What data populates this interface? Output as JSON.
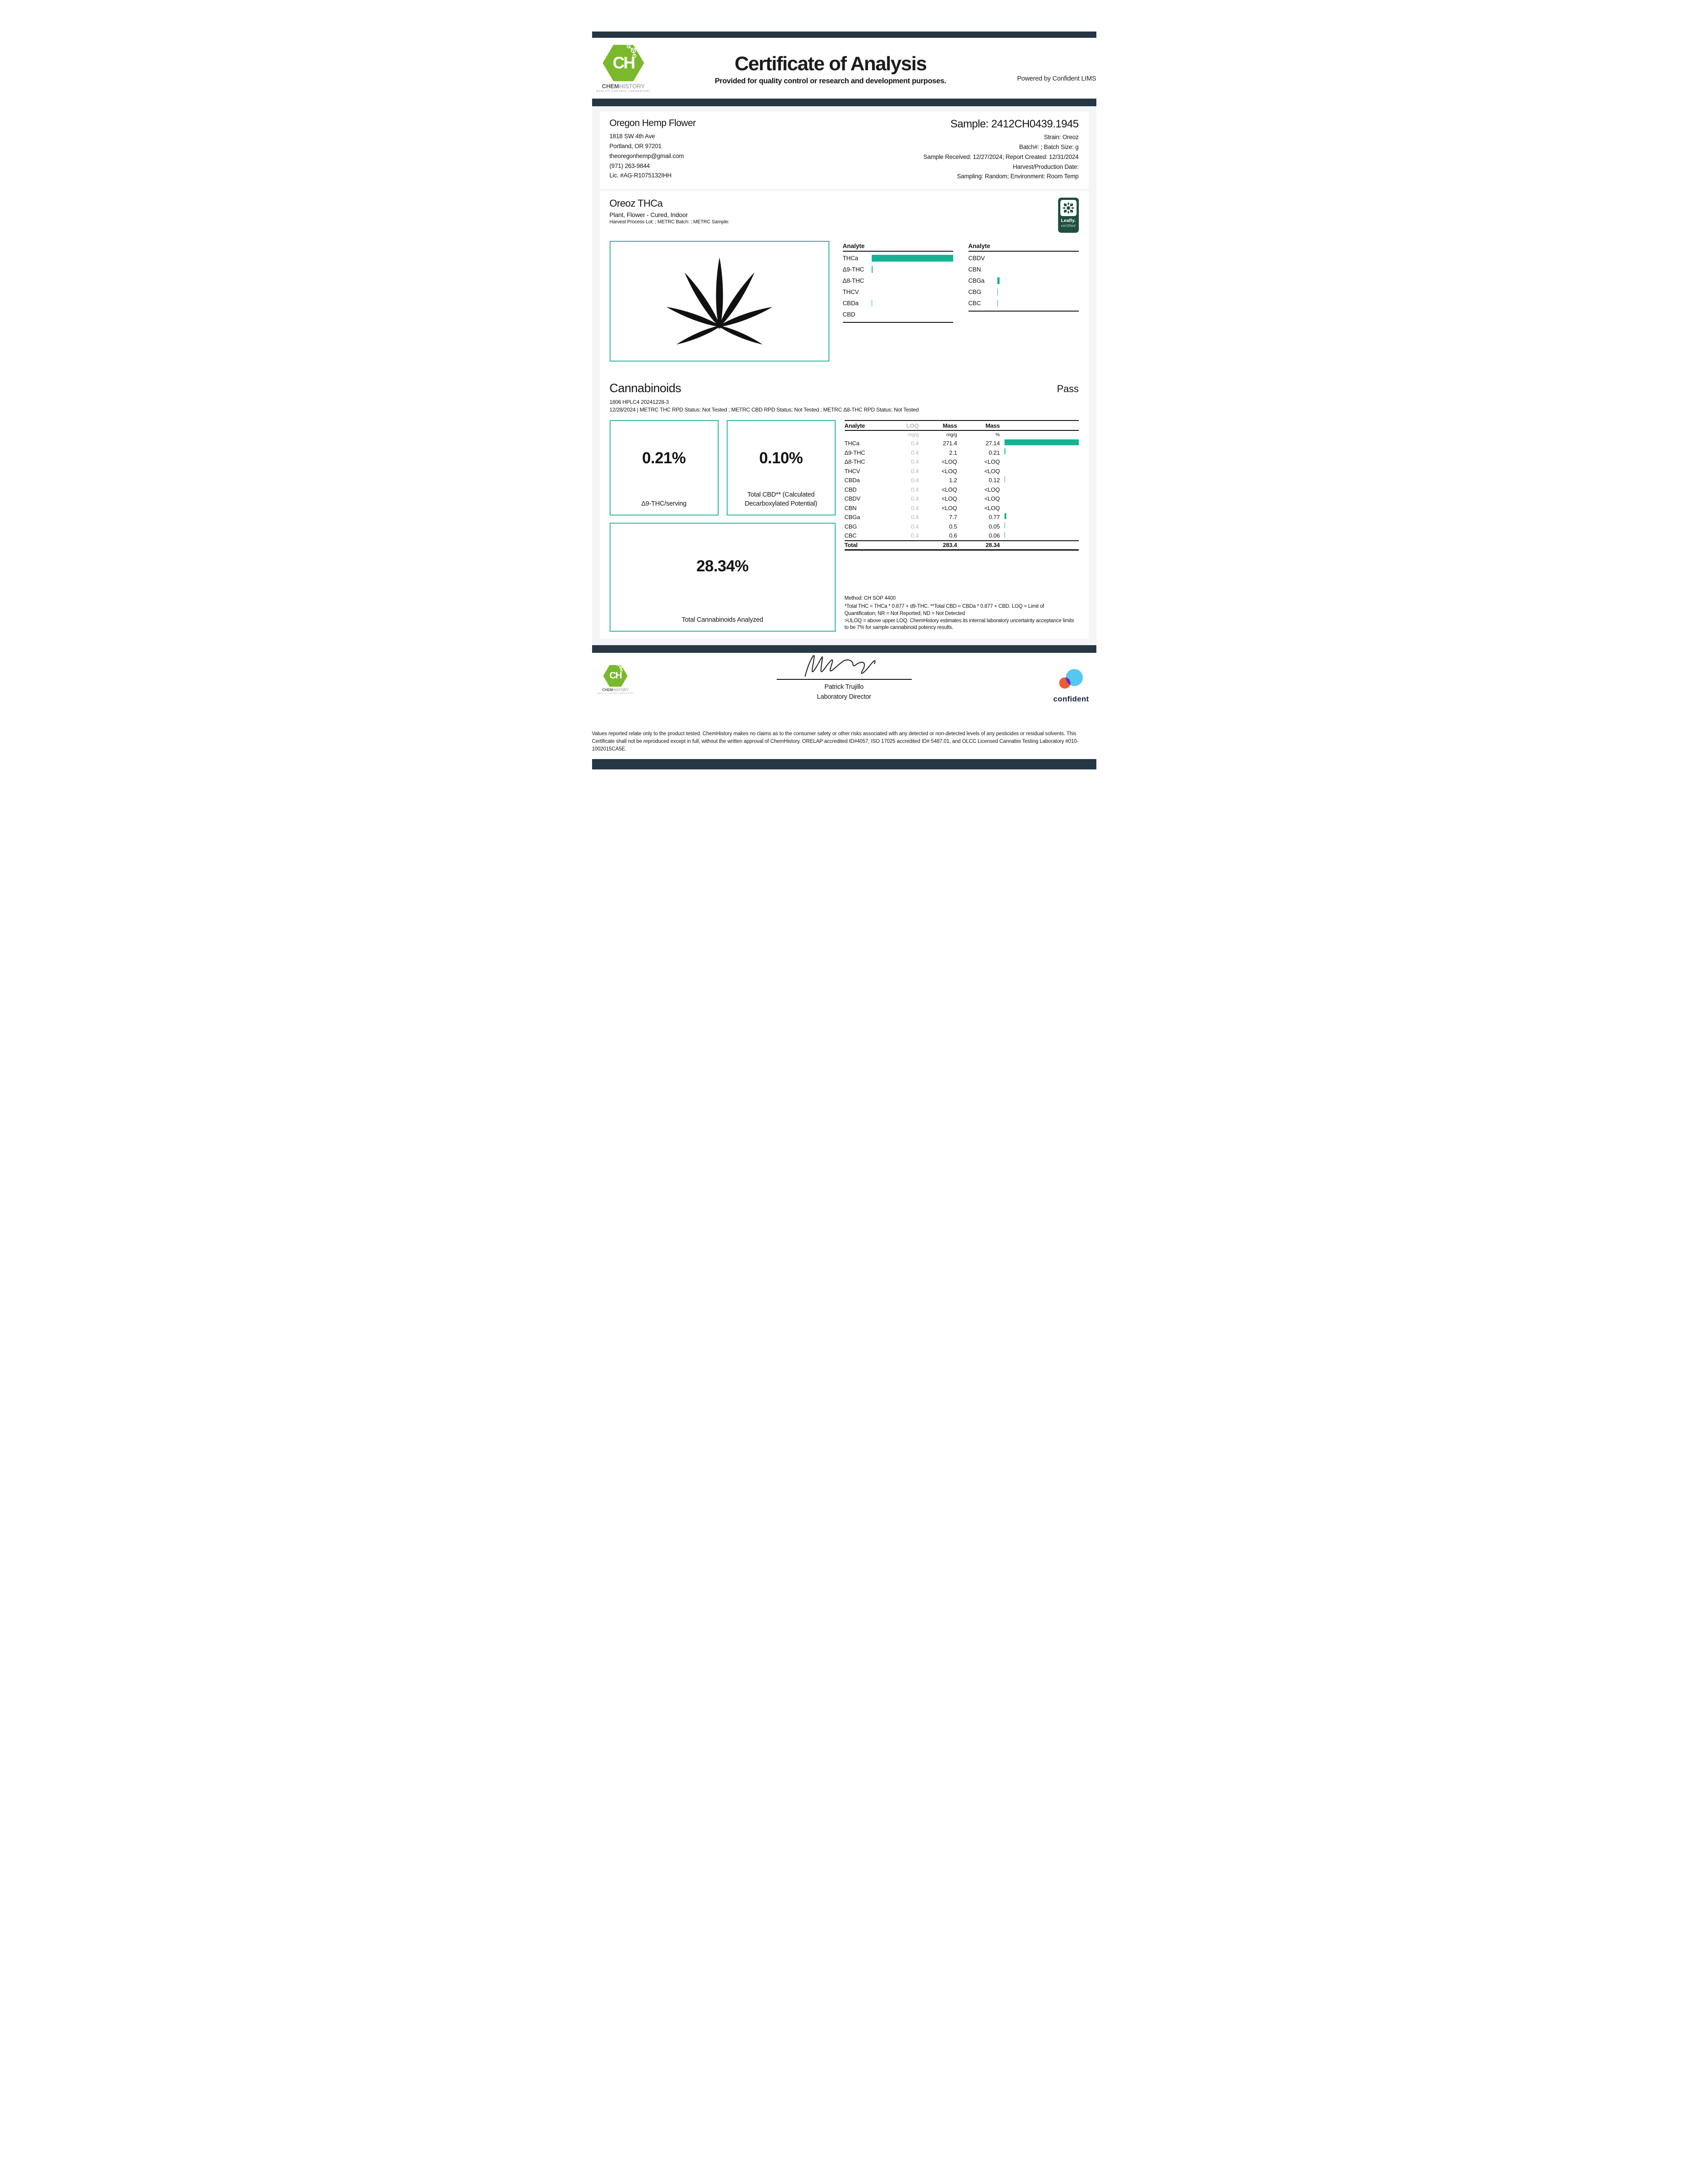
{
  "header": {
    "title": "Certificate of Analysis",
    "subtitle": "Provided for quality control or research and development purposes.",
    "powered_by": "Powered by Confident LIMS",
    "logo": {
      "initials": "CH",
      "word_bold": "CHEM",
      "word_light": "HISTORY",
      "tagline": "QUALITY CONTROL LABORATORY"
    }
  },
  "client": {
    "name": "Oregon Hemp Flower",
    "address_line1": "1818 SW 4th Ave",
    "address_line2": "Portland, OR 97201",
    "email": "theoregonhemp@gmail.com",
    "phone": "(971) 263-9844",
    "license": "Lic. #AG-R1075132IHH"
  },
  "sample": {
    "id": "Sample: 2412CH0439.1945",
    "strain": "Strain: Oreoz",
    "batch": "Batch#: ; Batch Size:  g",
    "received": "Sample Received: 12/27/2024; Report Created: 12/31/2024",
    "harvest": "Harvest/Production Date:",
    "sampling": "Sampling: Random; Environment: Room Temp"
  },
  "product": {
    "name": "Oreoz THCa",
    "type": "Plant, Flower - Cured, Indoor",
    "lots": "Harvest Process Lot: ; METRC Batch: ; METRC Sample:"
  },
  "leafly": {
    "line1": "Leafly.",
    "line2": "certified"
  },
  "overview": {
    "header": "Analyte",
    "left": [
      {
        "name": "THCa",
        "bar": 100
      },
      {
        "name": "Δ9-THC",
        "bar": 1.6
      },
      {
        "name": "Δ8-THC",
        "bar": 0
      },
      {
        "name": "THCV",
        "bar": 0
      },
      {
        "name": "CBDa",
        "bar": 0.9
      },
      {
        "name": "CBD",
        "bar": 0
      }
    ],
    "right": [
      {
        "name": "CBDV",
        "bar": 0
      },
      {
        "name": "CBN",
        "bar": 0
      },
      {
        "name": "CBGa",
        "bar": 3
      },
      {
        "name": "CBG",
        "bar": 0.9
      },
      {
        "name": "CBC",
        "bar": 0.9
      }
    ]
  },
  "section": {
    "title": "Cannabinoids",
    "status": "Pass",
    "run_line": "1806 HPLC4 20241228-3",
    "status_line": "12/28/2024 | METRC THC RPD Status: Not Tested ; METRC CBD RPD Status: Not Tested ; METRC Δ8-THC RPD Status: Not Tested"
  },
  "highlights": [
    {
      "value": "0.21%",
      "label": "Δ9-THC/serving"
    },
    {
      "value": "0.10%",
      "label": "Total CBD** (Calculated Decarboxylated Potential)"
    },
    {
      "value": "28.34%",
      "label": "Total Cannabinoids Analyzed"
    }
  ],
  "table": {
    "headers": [
      "Analyte",
      "LOQ",
      "Mass",
      "Mass"
    ],
    "units": [
      "mg/g",
      "mg/g",
      "%"
    ],
    "rows": [
      {
        "analyte": "THCa",
        "loq": "0.4",
        "mass": "271.4",
        "pct": "27.14",
        "bar": 100
      },
      {
        "analyte": "Δ9-THC",
        "loq": "0.4",
        "mass": "2.1",
        "pct": "0.21",
        "bar": 1.6
      },
      {
        "analyte": "Δ8-THC",
        "loq": "0.4",
        "mass": "<LOQ",
        "pct": "<LOQ",
        "bar": 0
      },
      {
        "analyte": "THCV",
        "loq": "0.4",
        "mass": "<LOQ",
        "pct": "<LOQ",
        "bar": 0
      },
      {
        "analyte": "CBDa",
        "loq": "0.4",
        "mass": "1.2",
        "pct": "0.12",
        "bar": 0.9
      },
      {
        "analyte": "CBD",
        "loq": "0.4",
        "mass": "<LOQ",
        "pct": "<LOQ",
        "bar": 0
      },
      {
        "analyte": "CBDV",
        "loq": "0.4",
        "mass": "<LOQ",
        "pct": "<LOQ",
        "bar": 0
      },
      {
        "analyte": "CBN",
        "loq": "0.4",
        "mass": "<LOQ",
        "pct": "<LOQ",
        "bar": 0
      },
      {
        "analyte": "CBGa",
        "loq": "0.4",
        "mass": "7.7",
        "pct": "0.77",
        "bar": 3
      },
      {
        "analyte": "CBG",
        "loq": "0.4",
        "mass": "0.5",
        "pct": "0.05",
        "bar": 0.9
      },
      {
        "analyte": "CBC",
        "loq": "0.4",
        "mass": "0.6",
        "pct": "0.06",
        "bar": 0.9
      }
    ],
    "total": {
      "label": "Total",
      "mass": "283.4",
      "pct": "28.34"
    }
  },
  "notes": {
    "method": "Method: CH SOP 4400",
    "line1": "*Total THC = THCa * 0.877 + d9-THC. **Total CBD = CBDa * 0.877 + CBD. LOQ = Limit of Quantification; NR = Not Reported; ND = Not Detected",
    "line2": ">ULOQ = above upper LOQ. ChemHistory estimates its internal laboratory uncertainty acceptance limits to be 7% for sample cannabinoid potency results."
  },
  "signature": {
    "name": "Patrick Trujillo",
    "title": "Laboratory Director"
  },
  "confident": {
    "word": "confident"
  },
  "disclaimer": "Values reported relate only to the product tested. ChemHistory makes no claims as to the consumer safety or other risks associated with any detected or non-detected levels of any pesticides or residual solvents. This Certificate shall not be reproduced except in full, without the written approval of ChemHistory.  ORELAP accredited ID#4057, ISO 17025 accredited ID# 5487.01, and OLCC Licensed Cannabis Testing Laboratory #010-1002015CA5E.",
  "colors": {
    "navy_bar": "#263645",
    "accent_bar": "#16b294",
    "accent_border": "#2ab5a3",
    "logo_green": "#7ab82c",
    "leafly_green": "#1f4f3f",
    "confident_blue": "#55c8f2",
    "confident_orange": "#ee5b35",
    "confident_purple": "#5334cf",
    "muted_gray": "#b3b7bb"
  }
}
